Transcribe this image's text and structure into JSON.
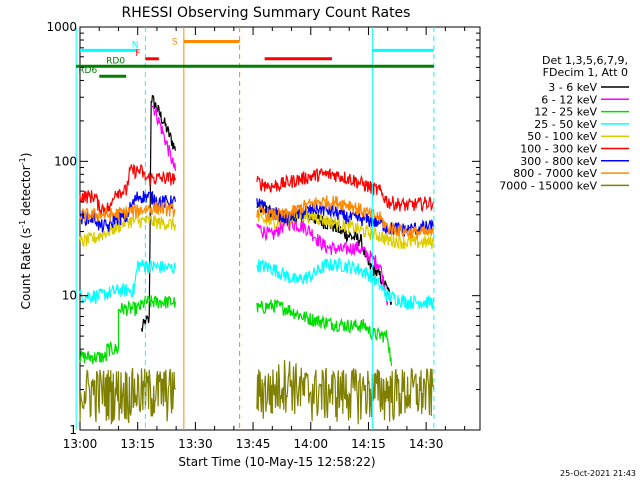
{
  "chart_data": {
    "type": "line",
    "title": "RHESSI Observing Summary Count Rates",
    "xlabel": "Start Time (10-May-15 12:58:22)",
    "ylabel": "Count Rate (s",
    "ylabel_sup": "-1",
    "ylabel_tail": " detector",
    "ylabel_close": ")",
    "y_scale": "log",
    "ylim": [
      1,
      1000
    ],
    "xlim_min": [
      0,
      104
    ],
    "x_tick_labels": [
      {
        "t": 0,
        "label": "13:00"
      },
      {
        "t": 15,
        "label": "13:15"
      },
      {
        "t": 30,
        "label": "13:30"
      },
      {
        "t": 45,
        "label": "13:45"
      },
      {
        "t": 60,
        "label": "14:00"
      },
      {
        "t": 75,
        "label": "14:15"
      },
      {
        "t": 90,
        "label": "14:30"
      }
    ],
    "y_tick_labels": [
      {
        "v": 1,
        "label": "1"
      },
      {
        "v": 10,
        "label": "10"
      },
      {
        "v": 100,
        "label": "100"
      },
      {
        "v": 1000,
        "label": "1000"
      }
    ],
    "legend_header": [
      "Det 1,3,5,6,7,9,",
      "FDecim 1, Att 0"
    ],
    "series": [
      {
        "name": "3 - 6 keV",
        "color": "#000000",
        "points": [
          [
            16,
            5.5
          ],
          [
            17,
            6.5
          ],
          [
            18,
            6.5
          ],
          [
            18.5,
            300
          ],
          [
            20,
            250
          ],
          [
            22,
            190
          ],
          [
            24,
            140
          ],
          [
            24.8,
            120
          ],
          [
            24.8,
            null
          ],
          [
            46,
            48
          ],
          [
            48,
            45
          ],
          [
            50,
            40
          ],
          [
            54,
            38
          ],
          [
            58,
            40
          ],
          [
            62,
            37
          ],
          [
            66,
            33
          ],
          [
            68,
            30
          ],
          [
            70,
            28
          ],
          [
            73,
            26
          ],
          [
            75,
            17
          ],
          [
            78,
            14
          ],
          [
            80,
            11
          ],
          [
            81,
            9
          ]
        ]
      },
      {
        "name": "6 - 12 keV",
        "color": "#ff00ff",
        "points": [
          [
            18.5,
            280
          ],
          [
            20,
            220
          ],
          [
            22,
            150
          ],
          [
            24,
            100
          ],
          [
            24.8,
            85
          ],
          [
            24.8,
            null
          ],
          [
            46,
            33
          ],
          [
            48,
            30
          ],
          [
            50,
            28
          ],
          [
            52,
            32
          ],
          [
            54,
            35
          ],
          [
            58,
            33
          ],
          [
            60,
            30
          ],
          [
            62,
            26
          ],
          [
            64,
            23
          ],
          [
            68,
            22
          ],
          [
            72,
            23
          ],
          [
            75,
            20
          ],
          [
            78,
            17
          ],
          [
            80,
            9
          ]
        ]
      },
      {
        "name": "12 - 25 keV",
        "color": "#00dd00",
        "points": [
          [
            0,
            3.5
          ],
          [
            7,
            3.5
          ],
          [
            7,
            4
          ],
          [
            10,
            4
          ],
          [
            10,
            8
          ],
          [
            15,
            8
          ],
          [
            17,
            9
          ],
          [
            24.8,
            9
          ],
          [
            24.8,
            null
          ],
          [
            46,
            8
          ],
          [
            50,
            8.5
          ],
          [
            54,
            8
          ],
          [
            58,
            7
          ],
          [
            62,
            6.5
          ],
          [
            66,
            6.2
          ],
          [
            70,
            6
          ],
          [
            74,
            6
          ],
          [
            76,
            5.2
          ],
          [
            80,
            5
          ],
          [
            81,
            3
          ]
        ]
      },
      {
        "name": "25 - 50 keV",
        "color": "#00ffff",
        "points": [
          [
            0,
            10
          ],
          [
            5,
            10
          ],
          [
            10,
            11
          ],
          [
            13,
            11
          ],
          [
            14,
            11
          ],
          [
            15,
            17
          ],
          [
            24.8,
            16
          ],
          [
            24.8,
            null
          ],
          [
            46,
            17
          ],
          [
            50,
            16
          ],
          [
            54,
            14
          ],
          [
            56,
            13
          ],
          [
            60,
            14
          ],
          [
            64,
            17
          ],
          [
            68,
            17
          ],
          [
            72,
            16
          ],
          [
            74,
            15
          ],
          [
            76,
            14
          ],
          [
            80,
            10
          ],
          [
            85,
            9
          ],
          [
            92,
            9
          ]
        ]
      },
      {
        "name": "50 - 100 keV",
        "color": "#ddcc00",
        "points": [
          [
            0,
            25
          ],
          [
            4,
            27
          ],
          [
            8,
            31
          ],
          [
            10,
            33
          ],
          [
            12,
            36
          ],
          [
            15,
            36
          ],
          [
            18,
            36
          ],
          [
            21,
            35
          ],
          [
            24.8,
            34
          ],
          [
            24.8,
            null
          ],
          [
            46,
            37
          ],
          [
            50,
            35
          ],
          [
            54,
            37
          ],
          [
            58,
            40
          ],
          [
            62,
            38
          ],
          [
            66,
            35
          ],
          [
            70,
            33
          ],
          [
            74,
            30
          ],
          [
            78,
            28
          ],
          [
            80,
            26
          ],
          [
            85,
            25
          ],
          [
            92,
            25
          ]
        ]
      },
      {
        "name": "100 - 300 keV",
        "color": "#ff0000",
        "points": [
          [
            0,
            55
          ],
          [
            4,
            55
          ],
          [
            5,
            45
          ],
          [
            8,
            45
          ],
          [
            9,
            60
          ],
          [
            12,
            60
          ],
          [
            13,
            85
          ],
          [
            16,
            85
          ],
          [
            17,
            75
          ],
          [
            24.8,
            75
          ],
          [
            24.8,
            null
          ],
          [
            46,
            70
          ],
          [
            50,
            65
          ],
          [
            54,
            70
          ],
          [
            58,
            75
          ],
          [
            62,
            80
          ],
          [
            66,
            80
          ],
          [
            70,
            75
          ],
          [
            74,
            67
          ],
          [
            78,
            60
          ],
          [
            80,
            50
          ],
          [
            85,
            47
          ],
          [
            92,
            50
          ]
        ]
      },
      {
        "name": "300 - 800 keV",
        "color": "#0000ff",
        "points": [
          [
            0,
            38
          ],
          [
            4,
            38
          ],
          [
            5,
            33
          ],
          [
            8,
            33
          ],
          [
            9,
            38
          ],
          [
            12,
            38
          ],
          [
            13,
            45
          ],
          [
            15,
            55
          ],
          [
            18,
            55
          ],
          [
            21,
            50
          ],
          [
            24.8,
            50
          ],
          [
            24.8,
            null
          ],
          [
            46,
            50
          ],
          [
            48,
            45
          ],
          [
            50,
            42
          ],
          [
            52,
            40
          ],
          [
            54,
            38
          ],
          [
            58,
            42
          ],
          [
            62,
            45
          ],
          [
            66,
            42
          ],
          [
            70,
            38
          ],
          [
            74,
            37
          ],
          [
            78,
            35
          ],
          [
            80,
            32
          ],
          [
            85,
            31
          ],
          [
            92,
            33
          ]
        ]
      },
      {
        "name": "800 - 7000 keV",
        "color": "#ff8800",
        "points": [
          [
            0,
            40
          ],
          [
            4,
            40
          ],
          [
            8,
            40
          ],
          [
            12,
            42
          ],
          [
            15,
            43
          ],
          [
            18,
            45
          ],
          [
            21,
            45
          ],
          [
            24.8,
            43
          ],
          [
            24.8,
            null
          ],
          [
            46,
            42
          ],
          [
            50,
            40
          ],
          [
            54,
            40
          ],
          [
            58,
            46
          ],
          [
            62,
            50
          ],
          [
            66,
            50
          ],
          [
            70,
            48
          ],
          [
            74,
            42
          ],
          [
            78,
            38
          ],
          [
            80,
            32
          ],
          [
            85,
            30
          ],
          [
            92,
            29
          ]
        ]
      },
      {
        "name": "7000 - 15000 keV",
        "color": "#808000",
        "points": [
          [
            0,
            2
          ],
          [
            8,
            2
          ],
          [
            12,
            2
          ],
          [
            13,
            2
          ],
          [
            15,
            2
          ],
          [
            16,
            2
          ],
          [
            24.8,
            2
          ],
          [
            24.8,
            null
          ],
          [
            46,
            2
          ],
          [
            50,
            2
          ],
          [
            54,
            2.5
          ],
          [
            58,
            2
          ],
          [
            62,
            2
          ],
          [
            66,
            2
          ],
          [
            70,
            2
          ],
          [
            74,
            2
          ],
          [
            78,
            2
          ],
          [
            80,
            2
          ],
          [
            85,
            2
          ],
          [
            92,
            2
          ]
        ]
      }
    ],
    "flags": [
      {
        "label": "N",
        "color": "#00ffff",
        "t0": 0,
        "t1": 15,
        "y": 670
      },
      {
        "label": "",
        "color": "#00ffff",
        "t0": 76,
        "t1": 92,
        "y": 670
      },
      {
        "label": "F",
        "color": "#ff0000",
        "t0": 17,
        "t1": 20.5,
        "y": 580
      },
      {
        "label": "",
        "color": "#ff0000",
        "t0": 48,
        "t1": 65.5,
        "y": 580
      },
      {
        "label": "S",
        "color": "#ff8800",
        "t0": 27,
        "t1": 41.5,
        "y": 780
      },
      {
        "label": "RD0",
        "color": "#008000",
        "t0": -1,
        "t1": 92,
        "y": 510
      },
      {
        "label": "RD6",
        "color": "#008000",
        "t0": 5,
        "t1": 12,
        "y": 430
      }
    ],
    "vertical_markers": [
      {
        "t": -1,
        "color": "#00ffff",
        "dashed": false
      },
      {
        "t": 17,
        "color": "#00ffff",
        "dashed": true
      },
      {
        "t": 27,
        "color": "#ff8800",
        "dashed": false
      },
      {
        "t": 41.5,
        "color": "#ff8800",
        "dashed": true
      },
      {
        "t": 76,
        "color": "#00ffff",
        "dashed": false
      },
      {
        "t": 92,
        "color": "#00ffff",
        "dashed": true
      }
    ],
    "gaps": [
      [
        24.8,
        46
      ]
    ],
    "footer": "25-Oct-2021 21:43"
  }
}
